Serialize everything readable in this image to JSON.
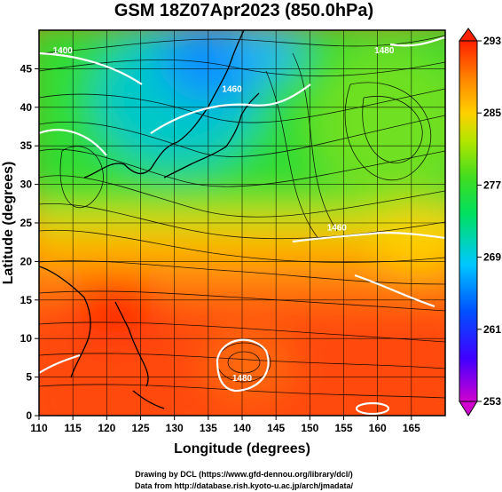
{
  "title": "GSM 18Z07Apr2023 (850.0hPa)",
  "xlabel": "Longitude (degrees)",
  "ylabel": "Latitude  (degrees)",
  "x_ticks": [
    110,
    115,
    120,
    125,
    130,
    135,
    140,
    145,
    150,
    155,
    160,
    165
  ],
  "y_ticks": [
    0,
    5,
    10,
    15,
    20,
    25,
    30,
    35,
    40,
    45
  ],
  "xlim": [
    110,
    170
  ],
  "ylim": [
    0,
    50
  ],
  "colorbar": {
    "ticks": [
      293,
      285,
      277,
      269,
      261,
      253
    ],
    "range": [
      253,
      293
    ],
    "colors": [
      "#c800c8",
      "#0000ff",
      "#00c8ff",
      "#00dc32",
      "#a0e600",
      "#ffd000",
      "#ff8000",
      "#ff2000"
    ]
  },
  "contour_labels": [
    {
      "text": "1400",
      "lon": 113.5,
      "lat": 47.0
    },
    {
      "text": "1480",
      "lon": 161.0,
      "lat": 47.0
    },
    {
      "text": "1460",
      "lon": 138.5,
      "lat": 42.0
    },
    {
      "text": "1460",
      "lon": 154.0,
      "lat": 24.0
    },
    {
      "text": "1480",
      "lon": 140.0,
      "lat": 4.5
    }
  ],
  "credits": [
    "Drawing by DCL (https://www.gfd-dennou.org/library/dcl/)",
    "Data from http://database.rish.kyoto-u.ac.jp/arch/jmadata/"
  ]
}
